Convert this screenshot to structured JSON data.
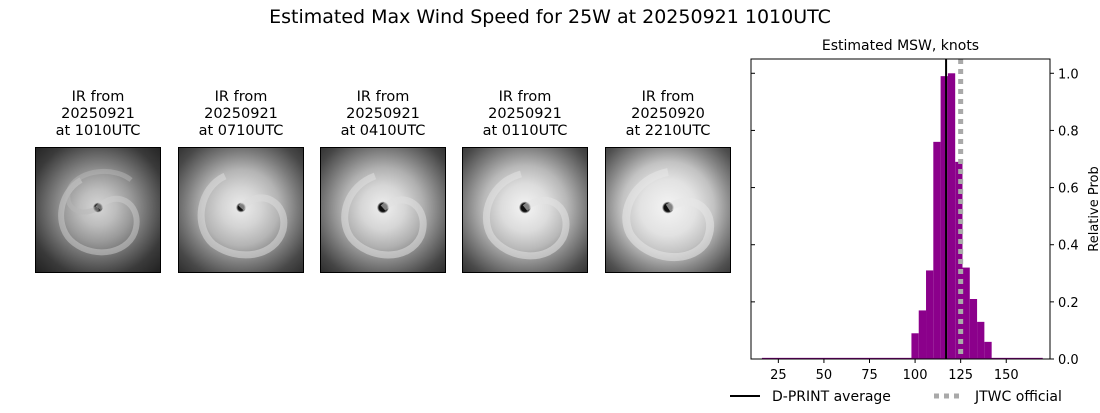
{
  "figure": {
    "title": "Estimated Max Wind Speed for 25W at 20250921 1010UTC"
  },
  "panels": [
    {
      "line1": "IR from",
      "line2": "20250921",
      "line3": "at 1010UTC"
    },
    {
      "line1": "IR from",
      "line2": "20250921",
      "line3": "at 0710UTC"
    },
    {
      "line1": "IR from",
      "line2": "20250921",
      "line3": "at 0410UTC"
    },
    {
      "line1": "IR from",
      "line2": "20250921",
      "line3": "at 0110UTC"
    },
    {
      "line1": "IR from",
      "line2": "20250920",
      "line3": "at 2210UTC"
    }
  ],
  "colors": {
    "histogram": "#8b008b",
    "dprint_line": "#000000",
    "jtwc_line": "#a9a9a9"
  },
  "chart_data": {
    "type": "bar",
    "title": "Estimated MSW, knots",
    "xlabel": "",
    "ylabel": "Relative Prob",
    "xlim": [
      10,
      174
    ],
    "ylim": [
      0,
      1.05
    ],
    "xticks": [
      25,
      50,
      75,
      100,
      125,
      150
    ],
    "yticks": [
      0.0,
      0.2,
      0.4,
      0.6,
      0.8,
      1.0
    ],
    "ytick_labels": [
      "0.0",
      "0.2",
      "0.4",
      "0.6",
      "0.8",
      "1.0"
    ],
    "yaxis_side": "right",
    "bin_width": 4,
    "bins": [
      {
        "x0": 98,
        "value": 0.09
      },
      {
        "x0": 102,
        "value": 0.17
      },
      {
        "x0": 106,
        "value": 0.31
      },
      {
        "x0": 110,
        "value": 0.76
      },
      {
        "x0": 114,
        "value": 0.99
      },
      {
        "x0": 118,
        "value": 1.0
      },
      {
        "x0": 122,
        "value": 0.69
      },
      {
        "x0": 126,
        "value": 0.32
      },
      {
        "x0": 130,
        "value": 0.21
      },
      {
        "x0": 134,
        "value": 0.13
      },
      {
        "x0": 138,
        "value": 0.06
      }
    ],
    "baseline_range": [
      16,
      170
    ],
    "baseline_value": 0.004,
    "dprint_average": 117,
    "jtwc_official": 125,
    "legend": {
      "position": "bottom",
      "entries": [
        "D-PRINT average",
        "JTWC official"
      ]
    }
  }
}
